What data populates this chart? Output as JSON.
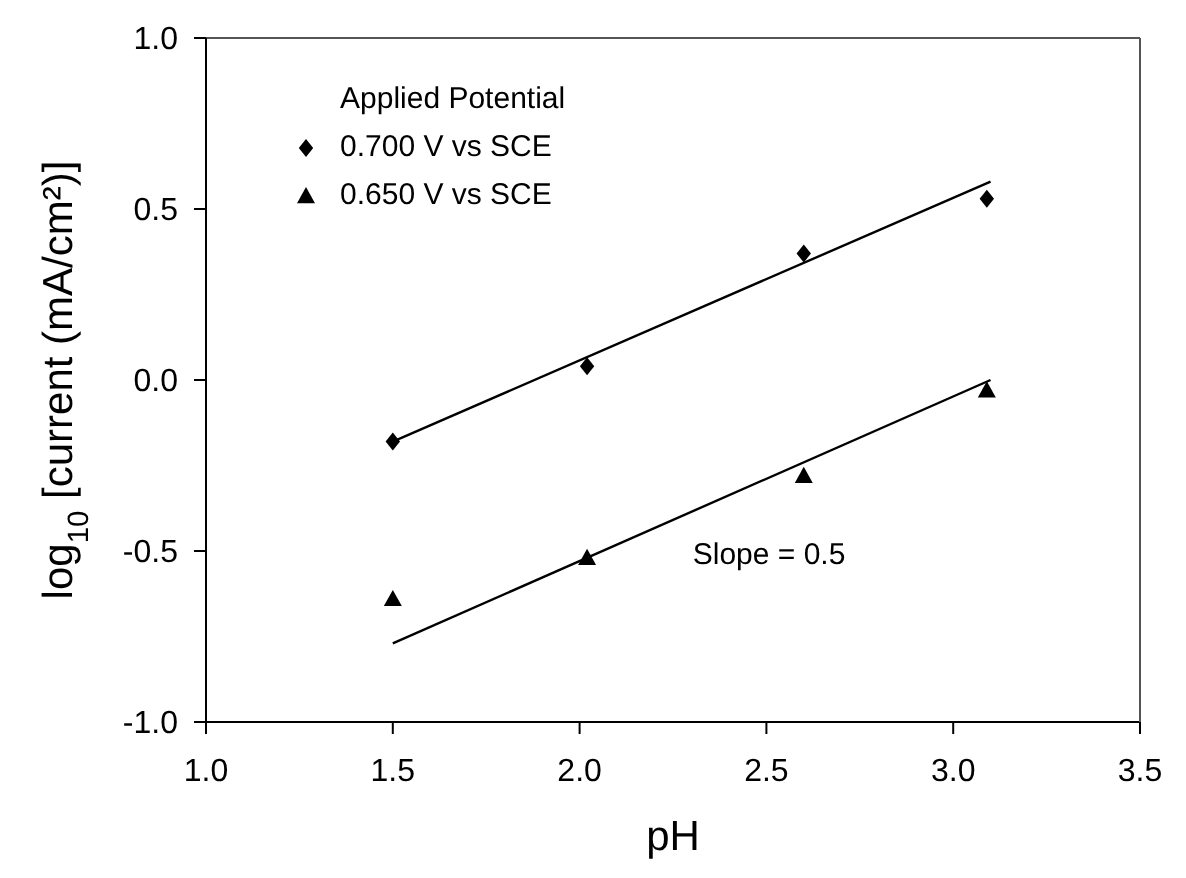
{
  "chart_data": {
    "type": "scatter",
    "xlabel": "pH",
    "ylabel": "log$_{10}$ [current (mA/cm²)]",
    "legend_title": "Applied Potential",
    "legend": "top left",
    "xlim": [
      1.0,
      3.5
    ],
    "xticks": [
      {
        "value": 1,
        "label": "1.0"
      },
      1.5,
      {
        "value": 2,
        "label": "2.0"
      },
      2.5,
      {
        "value": 3,
        "label": "3.0"
      },
      3.5
    ],
    "ylim": [
      -1.0,
      1.0
    ],
    "yticks": [
      {
        "value": -1,
        "label": "-1.0"
      },
      -0.5,
      {
        "value": 0,
        "label": "0.0"
      },
      0.5,
      {
        "value": 1,
        "label": "1.0"
      }
    ],
    "annotations": [
      "Slope = 0.5"
    ],
    "series": [
      {
        "name": "0.700 V vs SCE",
        "color": "#000000",
        "marker": "diamond",
        "x": [
          1.5,
          2.02,
          2.6,
          3.09
        ],
        "values": [
          -0.18,
          0.04,
          0.37,
          0.53
        ]
      },
      {
        "name": "0.650 V vs SCE",
        "color": "#000000",
        "marker": "triangle",
        "x": [
          1.5,
          2.02,
          2.6,
          3.09
        ],
        "values": [
          -0.64,
          -0.52,
          -0.28,
          -0.03
        ]
      },
      {
        "type": "line",
        "color": "#000000",
        "marker": "none",
        "x": [
          1.5,
          3.1
        ],
        "values": [
          -0.18,
          0.58
        ]
      },
      {
        "type": "line",
        "color": "#000000",
        "marker": "none",
        "x": [
          1.5,
          3.1
        ],
        "values": [
          -0.77,
          0.0
        ]
      }
    ]
  }
}
